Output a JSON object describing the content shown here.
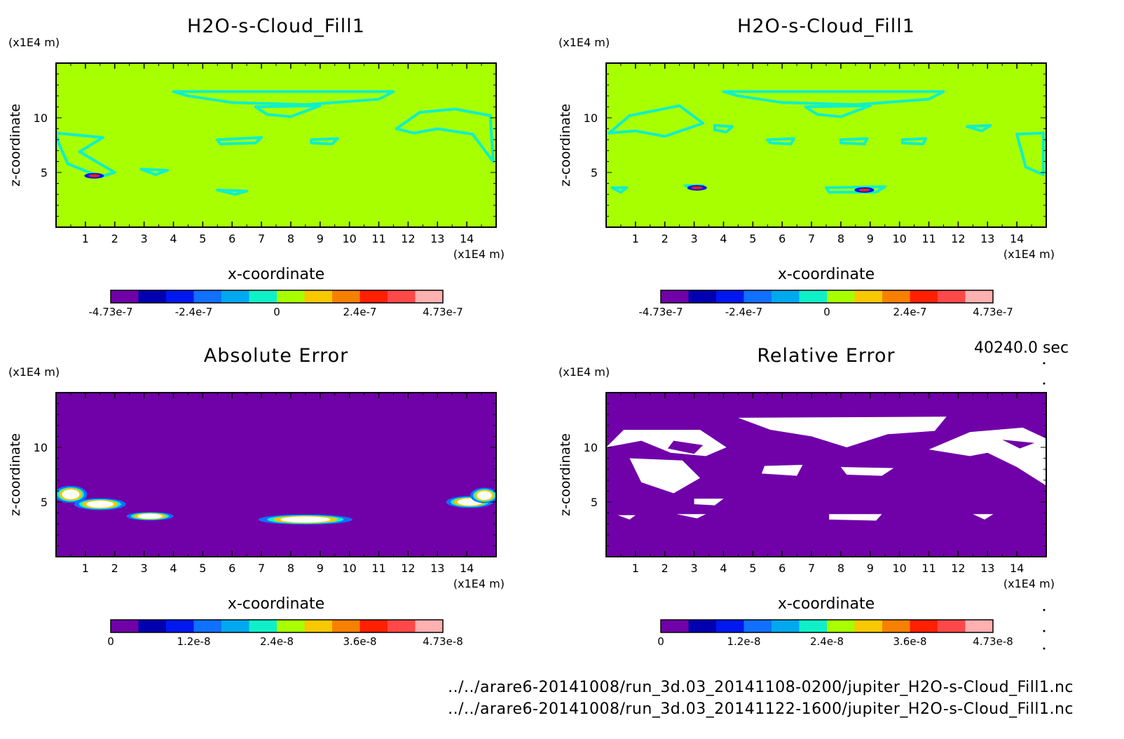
{
  "time_label": "40240.0 sec",
  "files": [
    "../../arare6-20141008/run_3d.03_20141108-0200/jupiter_H2O-s-Cloud_Fill1.nc",
    "../../arare6-20141008/run_3d.03_20141122-1600/jupiter_H2O-s-Cloud_Fill1.nc"
  ],
  "colors": {
    "levels": [
      "#7000a8",
      "#0000b0",
      "#0018f0",
      "#1070ff",
      "#00a8f0",
      "#10f0c8",
      "#a8ff00",
      "#f8c800",
      "#f88000",
      "#ff2000",
      "#ff4848",
      "#ffb0b0"
    ]
  },
  "chart_data": [
    {
      "type": "heatmap",
      "title": "H2O-s-Cloud_Fill1",
      "xlabel": "x-coordinate",
      "ylabel": "z-coordinate",
      "x_unit": "(x1E4 m)",
      "y_unit": "(x1E4 m)",
      "xlim": [
        0,
        15
      ],
      "ylim": [
        0,
        15
      ],
      "x_ticks": [
        "1",
        "2",
        "3",
        "4",
        "5",
        "6",
        "7",
        "8",
        "9",
        "10",
        "11",
        "12",
        "13",
        "14"
      ],
      "y_ticks": [
        "5",
        "10"
      ],
      "background_level": 6,
      "contour_level": 5,
      "colorbar": {
        "min": -4.73e-07,
        "max": 4.73e-07,
        "labels": [
          "-4.73e-7",
          "-2.4e-7",
          "0",
          "2.4e-7",
          "4.73e-7"
        ]
      }
    },
    {
      "type": "heatmap",
      "title": "H2O-s-Cloud_Fill1",
      "xlabel": "x-coordinate",
      "ylabel": "z-coordinate",
      "x_unit": "(x1E4 m)",
      "y_unit": "(x1E4 m)",
      "xlim": [
        0,
        15
      ],
      "ylim": [
        0,
        15
      ],
      "x_ticks": [
        "1",
        "2",
        "3",
        "4",
        "5",
        "6",
        "7",
        "8",
        "9",
        "10",
        "11",
        "12",
        "13",
        "14"
      ],
      "y_ticks": [
        "5",
        "10"
      ],
      "background_level": 6,
      "contour_level": 5,
      "colorbar": {
        "min": -4.73e-07,
        "max": 4.73e-07,
        "labels": [
          "-4.73e-7",
          "-2.4e-7",
          "0",
          "2.4e-7",
          "4.73e-7"
        ]
      }
    },
    {
      "type": "heatmap",
      "title": "Absolute Error",
      "xlabel": "x-coordinate",
      "ylabel": "z-coordinate",
      "x_unit": "(x1E4 m)",
      "y_unit": "(x1E4 m)",
      "xlim": [
        0,
        15
      ],
      "ylim": [
        0,
        15
      ],
      "x_ticks": [
        "1",
        "2",
        "3",
        "4",
        "5",
        "6",
        "7",
        "8",
        "9",
        "10",
        "11",
        "12",
        "13",
        "14"
      ],
      "y_ticks": [
        "5",
        "10"
      ],
      "background_level": 0,
      "colorbar": {
        "min": 0,
        "max": 4.73e-08,
        "labels": [
          "0",
          "1.2e-8",
          "2.4e-8",
          "3.6e-8",
          "4.73e-8"
        ]
      }
    },
    {
      "type": "heatmap",
      "title": "Relative Error",
      "xlabel": "x-coordinate",
      "ylabel": "z-coordinate",
      "x_unit": "(x1E4 m)",
      "y_unit": "(x1E4 m)",
      "xlim": [
        0,
        15
      ],
      "ylim": [
        0,
        15
      ],
      "x_ticks": [
        "1",
        "2",
        "3",
        "4",
        "5",
        "6",
        "7",
        "8",
        "9",
        "10",
        "11",
        "12",
        "13",
        "14"
      ],
      "y_ticks": [
        "5",
        "10"
      ],
      "background_level": 0,
      "colorbar": {
        "min": 0,
        "max": 4.73e-08,
        "labels": [
          "0",
          "1.2e-8",
          "2.4e-8",
          "3.6e-8",
          "4.73e-8"
        ]
      }
    }
  ]
}
